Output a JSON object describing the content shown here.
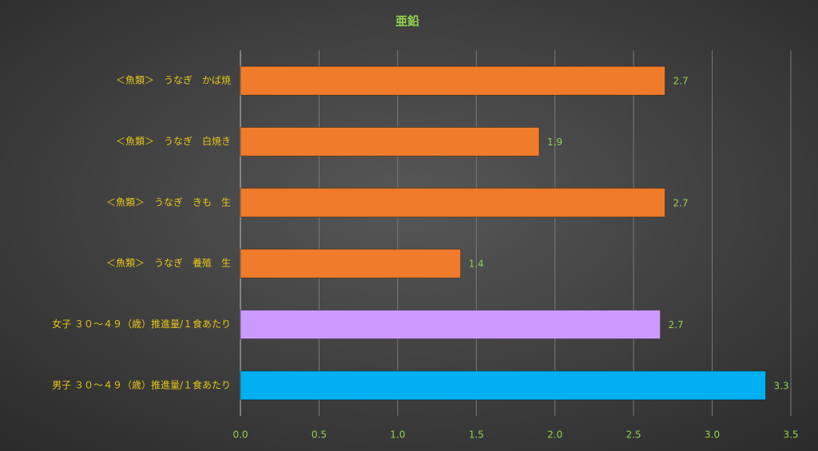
{
  "chart_data": {
    "type": "bar",
    "orientation": "horizontal",
    "title": "亜鉛",
    "categories": [
      "＜魚類＞　うなぎ　かば焼",
      "＜魚類＞　うなぎ　白焼き",
      "＜魚類＞　うなぎ　きも　生",
      "＜魚類＞　うなぎ　養殖　生",
      "女子 ３０～４９（歳）推進量/１食あたり",
      "男子 ３０～４９（歳）推進量/１食あたり"
    ],
    "values": [
      2.7,
      1.9,
      2.7,
      1.4,
      2.67,
      3.34
    ],
    "value_labels": [
      "2.7",
      "1.9",
      "2.7",
      "1.4",
      "2.7",
      "3.3"
    ],
    "colors": [
      "#f07b2a",
      "#f07b2a",
      "#f07b2a",
      "#f07b2a",
      "#cc99ff",
      "#00b0f0"
    ],
    "xlim": [
      0,
      3.5
    ],
    "xticks": [
      {
        "value": 0,
        "label": "0.0"
      },
      0.5,
      {
        "value": 1,
        "label": "1.0"
      },
      1.5,
      {
        "value": 2,
        "label": "2.0"
      },
      2.5,
      {
        "value": 3,
        "label": "3.0"
      },
      3.5
    ],
    "grid": true
  }
}
